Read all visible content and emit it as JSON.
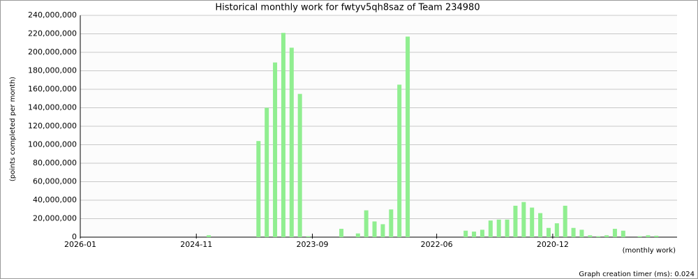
{
  "chart_data": {
    "type": "bar",
    "title": "Historical monthly work for fwtyv5qh8saz of Team 234980",
    "y_label": "(points completed per month)",
    "x_label": "(monthly work)",
    "footer": "Graph creation timer (ms): 0.024",
    "categories": [
      "2026-01",
      null,
      null,
      null,
      null,
      null,
      null,
      null,
      null,
      null,
      null,
      null,
      null,
      null,
      "2024-11",
      null,
      null,
      null,
      null,
      null,
      null,
      null,
      null,
      null,
      null,
      null,
      null,
      null,
      "2023-09",
      null,
      null,
      null,
      null,
      null,
      null,
      null,
      null,
      null,
      null,
      null,
      null,
      null,
      null,
      "2022-06",
      null,
      null,
      null,
      null,
      null,
      null,
      null,
      null,
      null,
      null,
      null,
      null,
      null,
      "2020-12",
      null,
      null,
      null,
      null,
      null,
      null,
      null,
      null,
      null,
      null,
      null,
      null,
      null,
      null
    ],
    "values": [
      0,
      0,
      0,
      0,
      0,
      0,
      0,
      0,
      0,
      0,
      0,
      0,
      0,
      0,
      0,
      2000000,
      0,
      0,
      0,
      0,
      0,
      104000000,
      140000000,
      189000000,
      221000000,
      205000000,
      155000000,
      1000000,
      0,
      0,
      0,
      9000000,
      0,
      4000000,
      29000000,
      17000000,
      14000000,
      30000000,
      165000000,
      217000000,
      0,
      0,
      0,
      0,
      0,
      0,
      7000000,
      6000000,
      8000000,
      18000000,
      19000000,
      19000000,
      34000000,
      38000000,
      32000000,
      26000000,
      10000000,
      15000000,
      34000000,
      10000000,
      8000000,
      2000000,
      1000000,
      2000000,
      9000000,
      7000000,
      0,
      1000000,
      2000000,
      1500000,
      0,
      0
    ],
    "color": "#90ee90",
    "ylim": [
      0,
      240000000
    ],
    "yticks": [
      0,
      {
        "value": 20000000,
        "label": "20,000,000"
      },
      {
        "value": 40000000,
        "label": "40,000,000"
      },
      {
        "value": 60000000,
        "label": "60,000,000"
      },
      {
        "value": 80000000,
        "label": "80,000,000"
      },
      {
        "value": 100000000,
        "label": "100,000,000"
      },
      {
        "value": 120000000,
        "label": "120,000,000"
      },
      {
        "value": 140000000,
        "label": "140,000,000"
      },
      {
        "value": 160000000,
        "label": "160,000,000"
      },
      {
        "value": 180000000,
        "label": "180,000,000"
      },
      {
        "value": 200000000,
        "label": "200,000,000"
      },
      {
        "value": 220000000,
        "label": "220,000,000"
      },
      {
        "value": 240000000,
        "label": "240,000,000"
      }
    ],
    "grid": true
  }
}
